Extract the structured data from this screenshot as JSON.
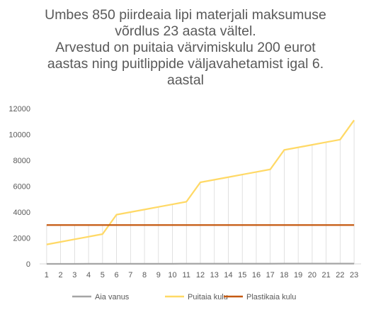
{
  "chart_data": {
    "type": "line",
    "title_lines": [
      "Umbes 850 piirdeaia lipi materjali maksumuse",
      "võrdlus 23 aasta vältel.",
      "Arvestud on puitaia värvimiskulu 200 eurot",
      "aastas ning puitlippide väljavahetamist igal 6.",
      "aastal"
    ],
    "xlabel": "",
    "ylabel": "",
    "x": [
      1,
      2,
      3,
      4,
      5,
      6,
      7,
      8,
      9,
      10,
      11,
      12,
      13,
      14,
      15,
      16,
      17,
      18,
      19,
      20,
      21,
      22,
      23
    ],
    "ylim": [
      0,
      12000
    ],
    "yticks": [
      0,
      2000,
      4000,
      6000,
      8000,
      10000,
      12000
    ],
    "grid": "vertical drop lines",
    "legend_position": "bottom",
    "series": [
      {
        "name": "Aia vanus",
        "color": "#a5a5a5",
        "values": [
          1,
          2,
          3,
          4,
          5,
          6,
          7,
          8,
          9,
          10,
          11,
          12,
          13,
          14,
          15,
          16,
          17,
          18,
          19,
          20,
          21,
          22,
          23
        ]
      },
      {
        "name": "Puitaia kulu",
        "color": "#ffd966",
        "values": [
          1500,
          1700,
          1900,
          2100,
          2300,
          3800,
          4000,
          4200,
          4400,
          4600,
          4800,
          6300,
          6500,
          6700,
          6900,
          7100,
          7300,
          8800,
          9000,
          9200,
          9400,
          9600,
          11100
        ]
      },
      {
        "name": "Plastikaia kulu",
        "color": "#c55a11",
        "values": [
          3000,
          3000,
          3000,
          3000,
          3000,
          3000,
          3000,
          3000,
          3000,
          3000,
          3000,
          3000,
          3000,
          3000,
          3000,
          3000,
          3000,
          3000,
          3000,
          3000,
          3000,
          3000,
          3000
        ]
      }
    ]
  }
}
